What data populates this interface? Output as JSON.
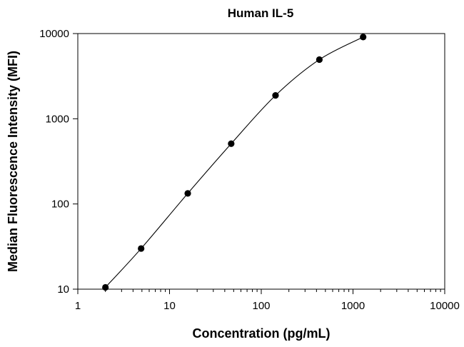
{
  "chart_data": {
    "type": "scatter",
    "title": "Human IL-5",
    "xlabel": "Concentration (pg/mL)",
    "ylabel": "Median Fluorescence Intensity (MFI)",
    "x_scale": "log",
    "y_scale": "log",
    "xlim": [
      1,
      10000
    ],
    "ylim": [
      10,
      10000
    ],
    "x_ticks": [
      1,
      10,
      100,
      1000,
      10000
    ],
    "x_tick_labels": [
      "1",
      "10",
      "100",
      "1000",
      "10000"
    ],
    "y_ticks": [
      10,
      100,
      1000,
      10000
    ],
    "y_tick_labels": [
      "10",
      "100",
      "1000",
      "10000"
    ],
    "grid": false,
    "series": [
      {
        "points": [
          {
            "x": 2.0,
            "y": 10.5
          },
          {
            "x": 4.9,
            "y": 30
          },
          {
            "x": 15.8,
            "y": 133
          },
          {
            "x": 47,
            "y": 510
          },
          {
            "x": 143,
            "y": 1880
          },
          {
            "x": 430,
            "y": 4950
          },
          {
            "x": 1290,
            "y": 9100
          }
        ],
        "fit_curve": true
      }
    ],
    "colors": {
      "marker": "#000000",
      "line": "#000000",
      "axes": "#000000"
    }
  }
}
